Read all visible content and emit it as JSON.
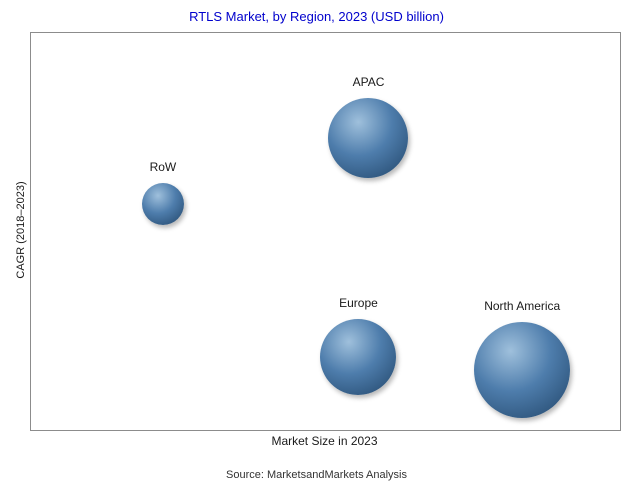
{
  "title": "RTLS Market, by Region, 2023 (USD billion)",
  "axes": {
    "x_label": "Market Size in 2023",
    "y_label": "CAGR (2018–2023)"
  },
  "source": "Source: MarketsandMarkets Analysis",
  "colors": {
    "title": "#0000cc",
    "plot_border": "#8c8c8c",
    "bubble_highlight": "#9fc0dc",
    "bubble_mid": "#4e7dac",
    "bubble_dark": "#2a5076"
  },
  "chart_data": {
    "type": "scatter",
    "subtype": "bubble",
    "title": "RTLS Market, by Region, 2023 (USD billion)",
    "xlabel": "Market Size in 2023",
    "ylabel": "CAGR (2018–2023)",
    "grid": false,
    "legend": false,
    "x_axis_tick_labels": [],
    "y_axis_tick_labels": [],
    "points": [
      {
        "label": "APAC",
        "x_pct": 57.3,
        "y_pct": 26.4,
        "radius_px": 40
      },
      {
        "label": "RoW",
        "x_pct": 22.4,
        "y_pct": 43.0,
        "radius_px": 21
      },
      {
        "label": "Europe",
        "x_pct": 55.6,
        "y_pct": 81.7,
        "radius_px": 38
      },
      {
        "label": "North America",
        "x_pct": 83.4,
        "y_pct": 84.9,
        "radius_px": 48
      }
    ]
  }
}
